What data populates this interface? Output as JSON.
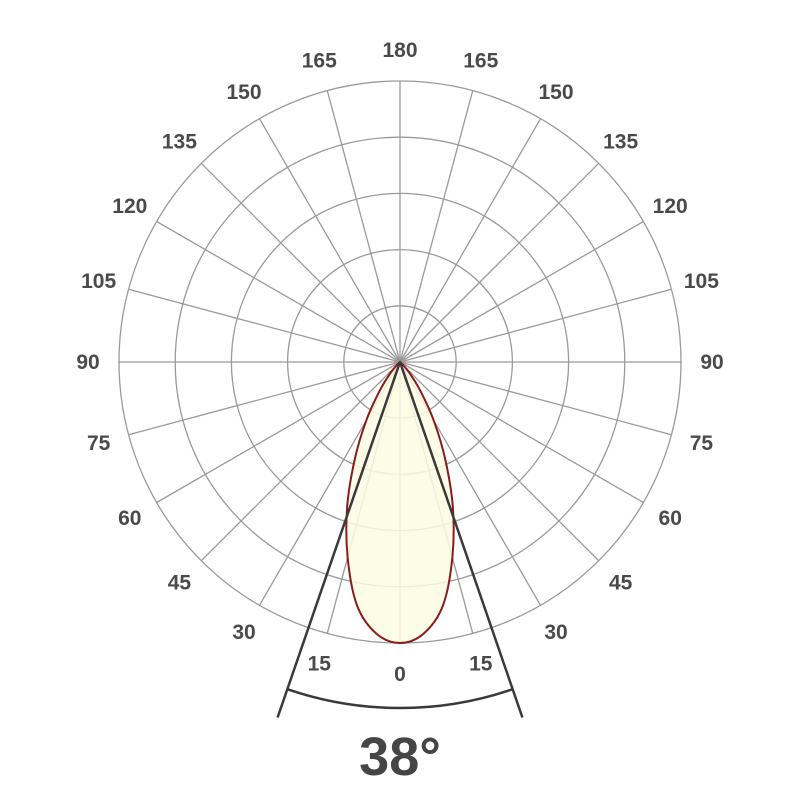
{
  "chart_data": {
    "type": "polar",
    "angle_labels_left": [
      "180",
      "165",
      "150",
      "135",
      "120",
      "105",
      "90",
      "75",
      "60",
      "45",
      "30",
      "15",
      "0"
    ],
    "angle_labels_right": [
      "165",
      "150",
      "135",
      "120",
      "105",
      "90",
      "75",
      "60",
      "45",
      "30",
      "15"
    ],
    "angle_step_deg": 15,
    "rings": 5,
    "grid": true,
    "series": [
      {
        "angles": [
          0,
          5,
          10,
          15,
          20,
          25,
          30,
          35,
          40,
          45,
          50
        ],
        "values": [
          1.0,
          0.97,
          0.88,
          0.72,
          0.55,
          0.38,
          0.24,
          0.13,
          0.06,
          0.02,
          0
        ],
        "symmetric": true
      }
    ],
    "beam_angle_label": "38°",
    "beam_angle_deg": 38,
    "colors": {
      "grid": "#9a9a9a",
      "curve": "#8b1a1a",
      "fill": "#fdfbe3",
      "beam": "#3a3a3a"
    }
  }
}
